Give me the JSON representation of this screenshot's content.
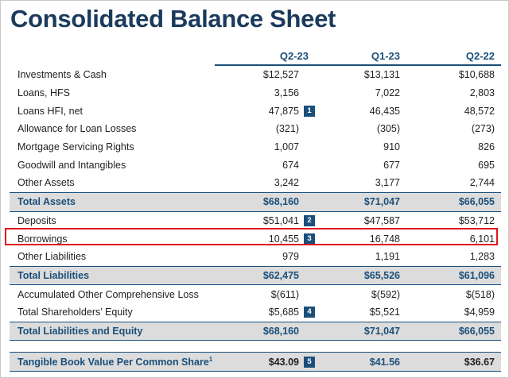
{
  "title": "Consolidated Balance Sheet",
  "columns": [
    "Q2-23",
    "Q1-23",
    "Q2-22"
  ],
  "rows": [
    {
      "label": "Investments & Cash",
      "values": [
        "$12,527",
        "$13,131",
        "$10,688"
      ],
      "badge": "",
      "type": "normal"
    },
    {
      "label": "Loans, HFS",
      "values": [
        "3,156",
        "7,022",
        "2,803"
      ],
      "badge": "",
      "type": "normal"
    },
    {
      "label": "Loans HFI, net",
      "values": [
        "47,875",
        "46,435",
        "48,572"
      ],
      "badge": "1",
      "type": "normal"
    },
    {
      "label": "Allowance for Loan Losses",
      "values": [
        "(321)",
        "(305)",
        "(273)"
      ],
      "badge": "",
      "type": "normal"
    },
    {
      "label": "Mortgage Servicing Rights",
      "values": [
        "1,007",
        "910",
        "826"
      ],
      "badge": "",
      "type": "normal"
    },
    {
      "label": "Goodwill and Intangibles",
      "values": [
        "674",
        "677",
        "695"
      ],
      "badge": "",
      "type": "normal"
    },
    {
      "label": "Other Assets",
      "values": [
        "3,242",
        "3,177",
        "2,744"
      ],
      "badge": "",
      "type": "normal"
    },
    {
      "label": "Total Assets",
      "values": [
        "$68,160",
        "$71,047",
        "$66,055"
      ],
      "badge": "",
      "type": "total"
    },
    {
      "label": "Deposits",
      "values": [
        "$51,041",
        "$47,587",
        "$53,712"
      ],
      "badge": "2",
      "type": "normal"
    },
    {
      "label": "Borrowings",
      "values": [
        "10,455",
        "16,748",
        "6,101"
      ],
      "badge": "3",
      "type": "normal"
    },
    {
      "label": "Other Liabilities",
      "values": [
        "979",
        "1,191",
        "1,283"
      ],
      "badge": "",
      "type": "normal"
    },
    {
      "label": "Total Liabilities",
      "values": [
        "$62,475",
        "$65,526",
        "$61,096"
      ],
      "badge": "",
      "type": "total"
    },
    {
      "label": "Accumulated Other Comprehensive Loss",
      "values": [
        "$(611)",
        "$(592)",
        "$(518)"
      ],
      "badge": "",
      "type": "normal"
    },
    {
      "label": "Total Shareholders’ Equity",
      "values": [
        "$5,685",
        "$5,521",
        "$4,959"
      ],
      "badge": "4",
      "type": "normal"
    },
    {
      "label": "Total Liabilities and Equity",
      "values": [
        "$68,160",
        "$71,047",
        "$66,055"
      ],
      "badge": "",
      "type": "total"
    }
  ],
  "tbv": {
    "label": "Tangible Book Value Per Common Share",
    "footnote": "1",
    "values": [
      "$43.09",
      "$41.56",
      "$36.67"
    ],
    "badge": "5"
  },
  "highlighted_row": "Borrowings",
  "colors": {
    "title": "#1b3a5c",
    "accent": "#1b4f7a",
    "total_bg": "#dcdcdc",
    "highlight_border": "#e0141e"
  }
}
